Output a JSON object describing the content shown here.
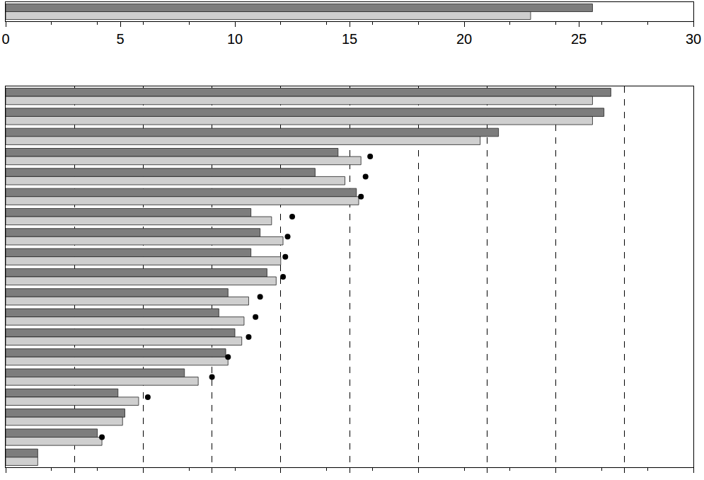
{
  "chart_data": [
    {
      "type": "bar",
      "orientation": "horizontal",
      "grid": false,
      "tick_labels": "x",
      "categories": [
        null
      ],
      "xlim": [
        0,
        30
      ],
      "xticks": [
        0,
        5,
        10,
        15,
        20,
        25,
        30
      ],
      "series": [
        {
          "color": "#7d7d7d",
          "values": [
            25.6
          ]
        },
        {
          "color": "#cfcfcf",
          "values": [
            22.9
          ]
        }
      ]
    },
    {
      "type": "bar",
      "orientation": "horizontal",
      "grid": true,
      "tick_labels": false,
      "categories": [
        null,
        null,
        null,
        null,
        null,
        null,
        null,
        null,
        null,
        null,
        null,
        null,
        null,
        null,
        null,
        null,
        null,
        null,
        null
      ],
      "xlim": [
        0,
        30
      ],
      "xticks": [
        0,
        3,
        6,
        9,
        12,
        15,
        18,
        21,
        24,
        27,
        30
      ],
      "series": [
        {
          "color": "#7d7d7d",
          "values": [
            26.4,
            26.1,
            21.5,
            14.5,
            13.5,
            15.3,
            10.7,
            11.1,
            10.7,
            11.4,
            9.7,
            9.3,
            10.0,
            9.6,
            7.8,
            4.9,
            5.2,
            4.0,
            1.4
          ]
        },
        {
          "color": "#cfcfcf",
          "values": [
            25.6,
            25.6,
            20.7,
            15.5,
            14.8,
            15.4,
            11.6,
            12.1,
            12.0,
            11.8,
            10.6,
            10.4,
            10.3,
            9.7,
            8.4,
            5.8,
            5.1,
            4.2,
            1.4
          ]
        },
        {
          "type": "scatter",
          "marker": "circle",
          "color": "#000000",
          "values": [
            null,
            null,
            null,
            15.9,
            15.7,
            15.5,
            12.5,
            12.3,
            12.2,
            12.1,
            11.1,
            10.9,
            10.6,
            9.7,
            9.0,
            6.2,
            null,
            4.2,
            null
          ]
        }
      ]
    }
  ]
}
